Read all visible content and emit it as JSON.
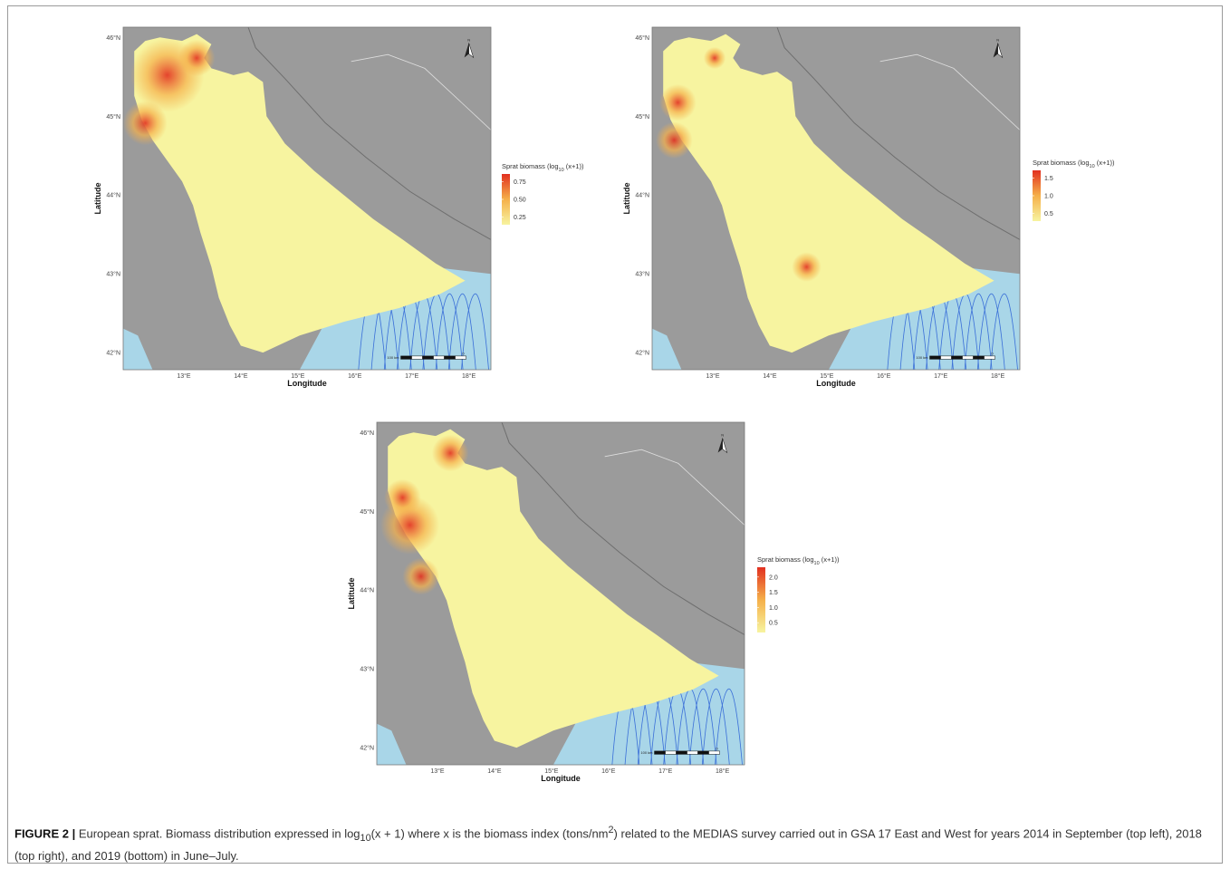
{
  "panels": [
    {
      "id": "2014",
      "lat_ticks": [
        "46°N",
        "45°N",
        "44°N",
        "43°N",
        "42°N"
      ],
      "lon_ticks": [
        "13°E",
        "14°E",
        "15°E",
        "16°E",
        "17°E",
        "18°E"
      ],
      "ylabel": "Latitude",
      "xlabel": "Longitude",
      "legend": {
        "title_main": "Sprat biomass (log",
        "title_sub": "10",
        "title_end": " (x+1))",
        "ticks": [
          "0.75",
          "0.50",
          "0.25"
        ]
      },
      "north_label": "N",
      "scale_labels": [
        "100 km",
        "0"
      ]
    },
    {
      "id": "2018",
      "lat_ticks": [
        "46°N",
        "45°N",
        "44°N",
        "43°N",
        "42°N"
      ],
      "lon_ticks": [
        "13°E",
        "14°E",
        "15°E",
        "16°E",
        "17°E",
        "18°E"
      ],
      "ylabel": "Latitude",
      "xlabel": "Longitude",
      "legend": {
        "title_main": "Sprat biomass (log",
        "title_sub": "10",
        "title_end": " (x+1))",
        "ticks": [
          "1.5",
          "1.0",
          "0.5"
        ]
      },
      "north_label": "N",
      "scale_labels": [
        "100 km",
        "0"
      ]
    },
    {
      "id": "2019",
      "lat_ticks": [
        "46°N",
        "45°N",
        "44°N",
        "43°N",
        "42°N"
      ],
      "lon_ticks": [
        "13°E",
        "14°E",
        "15°E",
        "16°E",
        "17°E",
        "18°E"
      ],
      "ylabel": "Latitude",
      "xlabel": "Longitude",
      "legend": {
        "title_main": "Sprat biomass (log",
        "title_sub": "10",
        "title_end": " (x+1))",
        "ticks": [
          "2.0",
          "1.5",
          "1.0",
          "0.5"
        ]
      },
      "north_label": "N",
      "scale_labels": [
        "100 km",
        "0"
      ]
    }
  ],
  "caption": {
    "label": "FIGURE 2 |",
    "text_a": " European sprat. Biomass distribution expressed in log",
    "sub": "10",
    "text_b": "(x + 1) where x is the biomass index (tons/nm",
    "sup": "2",
    "text_c": ") related to the MEDIAS survey carried out in GSA 17 East and West for years 2014 in September (top left), 2018 (top right), and 2019 (bottom) in June–July."
  },
  "colors": {
    "land": "#9b9b9b",
    "sea": "#a9d6e8",
    "survey_low": "#f7f4a0",
    "survey_mid": "#f5b04a",
    "survey_high": "#e23020",
    "bathymetry": "#3a6fd8"
  }
}
